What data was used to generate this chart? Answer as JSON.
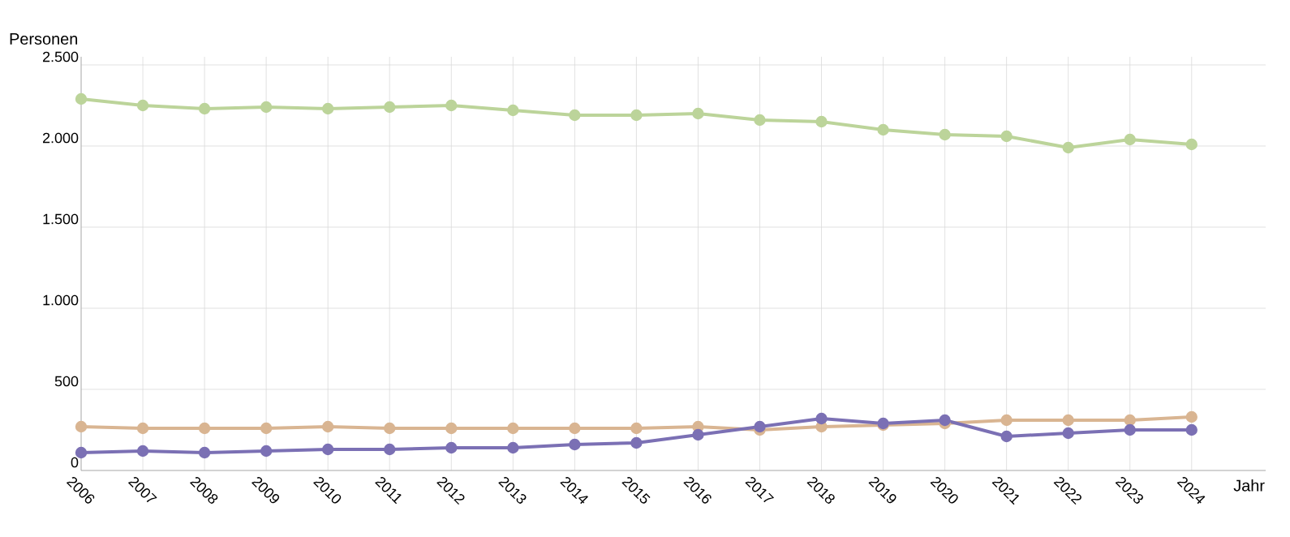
{
  "chart_data": {
    "type": "line",
    "xlabel": "Jahr",
    "ylabel": "Personen",
    "x": [
      2006,
      2007,
      2008,
      2009,
      2010,
      2011,
      2012,
      2013,
      2014,
      2015,
      2016,
      2017,
      2018,
      2019,
      2020,
      2021,
      2022,
      2023,
      2024
    ],
    "series": [
      {
        "color": "#bcd49a",
        "values": [
          2290,
          2250,
          2230,
          2240,
          2230,
          2240,
          2250,
          2220,
          2190,
          2190,
          2200,
          2160,
          2150,
          2100,
          2070,
          2060,
          1990,
          2040,
          2010
        ]
      },
      {
        "color": "#d9b592",
        "values": [
          270,
          260,
          260,
          260,
          270,
          260,
          260,
          260,
          260,
          260,
          270,
          250,
          270,
          280,
          290,
          310,
          310,
          310,
          330
        ]
      },
      {
        "color": "#7b70b4",
        "values": [
          110,
          120,
          110,
          120,
          130,
          130,
          140,
          140,
          160,
          170,
          220,
          270,
          320,
          290,
          310,
          210,
          230,
          250,
          250
        ]
      }
    ],
    "xlim": [
      2006,
      2025.2
    ],
    "ylim": [
      0,
      2550
    ],
    "xticks": [
      2006,
      2007,
      2008,
      2009,
      2010,
      2011,
      2012,
      2013,
      2014,
      2015,
      2016,
      2017,
      2018,
      2019,
      2020,
      2021,
      2022,
      2023,
      2024
    ],
    "yticks": [
      0,
      {
        "value": 500,
        "label": "500"
      },
      {
        "value": 1000,
        "label": "1.000"
      },
      {
        "value": 1500,
        "label": "1.500"
      },
      {
        "value": 2000,
        "label": "2.000"
      },
      {
        "value": 2500,
        "label": "2.500"
      }
    ],
    "grid": true,
    "marker": "circle",
    "line_style": "solid"
  }
}
